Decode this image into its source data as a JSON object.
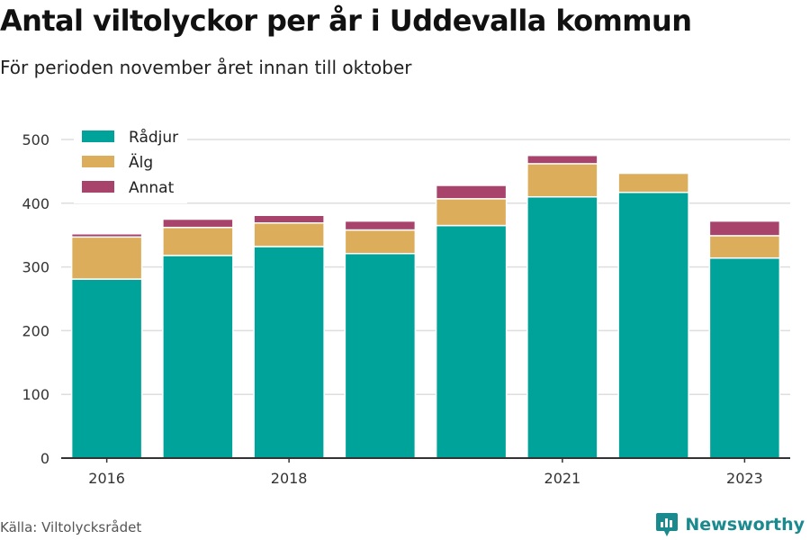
{
  "title": "Antal viltolyckor per år i Uddevalla kommun",
  "subtitle": "För perioden november året innan till oktober",
  "source": "Källa: Viltolycksrådet",
  "brand": "Newsworthy",
  "colors": {
    "Rådjur": "#00a39a",
    "Älg": "#dcae5c",
    "Annat": "#a8446b",
    "grid": "#dedede",
    "axis": "#333333",
    "brand": "#1a8a8f"
  },
  "chart_data": {
    "type": "bar",
    "stacked": true,
    "categories": [
      "2016",
      "2017",
      "2018",
      "2019",
      "2020",
      "2021",
      "2022",
      "2023"
    ],
    "x_tick_labels": [
      "2016",
      "",
      "2018",
      "",
      "",
      "2021",
      "",
      "2023"
    ],
    "series": [
      {
        "name": "Rådjur",
        "values": [
          281,
          318,
          332,
          321,
          365,
          410,
          417,
          314
        ]
      },
      {
        "name": "Älg",
        "values": [
          66,
          44,
          37,
          37,
          42,
          52,
          30,
          35
        ]
      },
      {
        "name": "Annat",
        "values": [
          5,
          13,
          12,
          14,
          21,
          13,
          0,
          23
        ]
      }
    ],
    "ylim": [
      0,
      500
    ],
    "yticks": [
      0,
      100,
      200,
      300,
      400,
      500
    ],
    "xlabel": "",
    "ylabel": "",
    "grid": true,
    "legend": "top-left"
  }
}
